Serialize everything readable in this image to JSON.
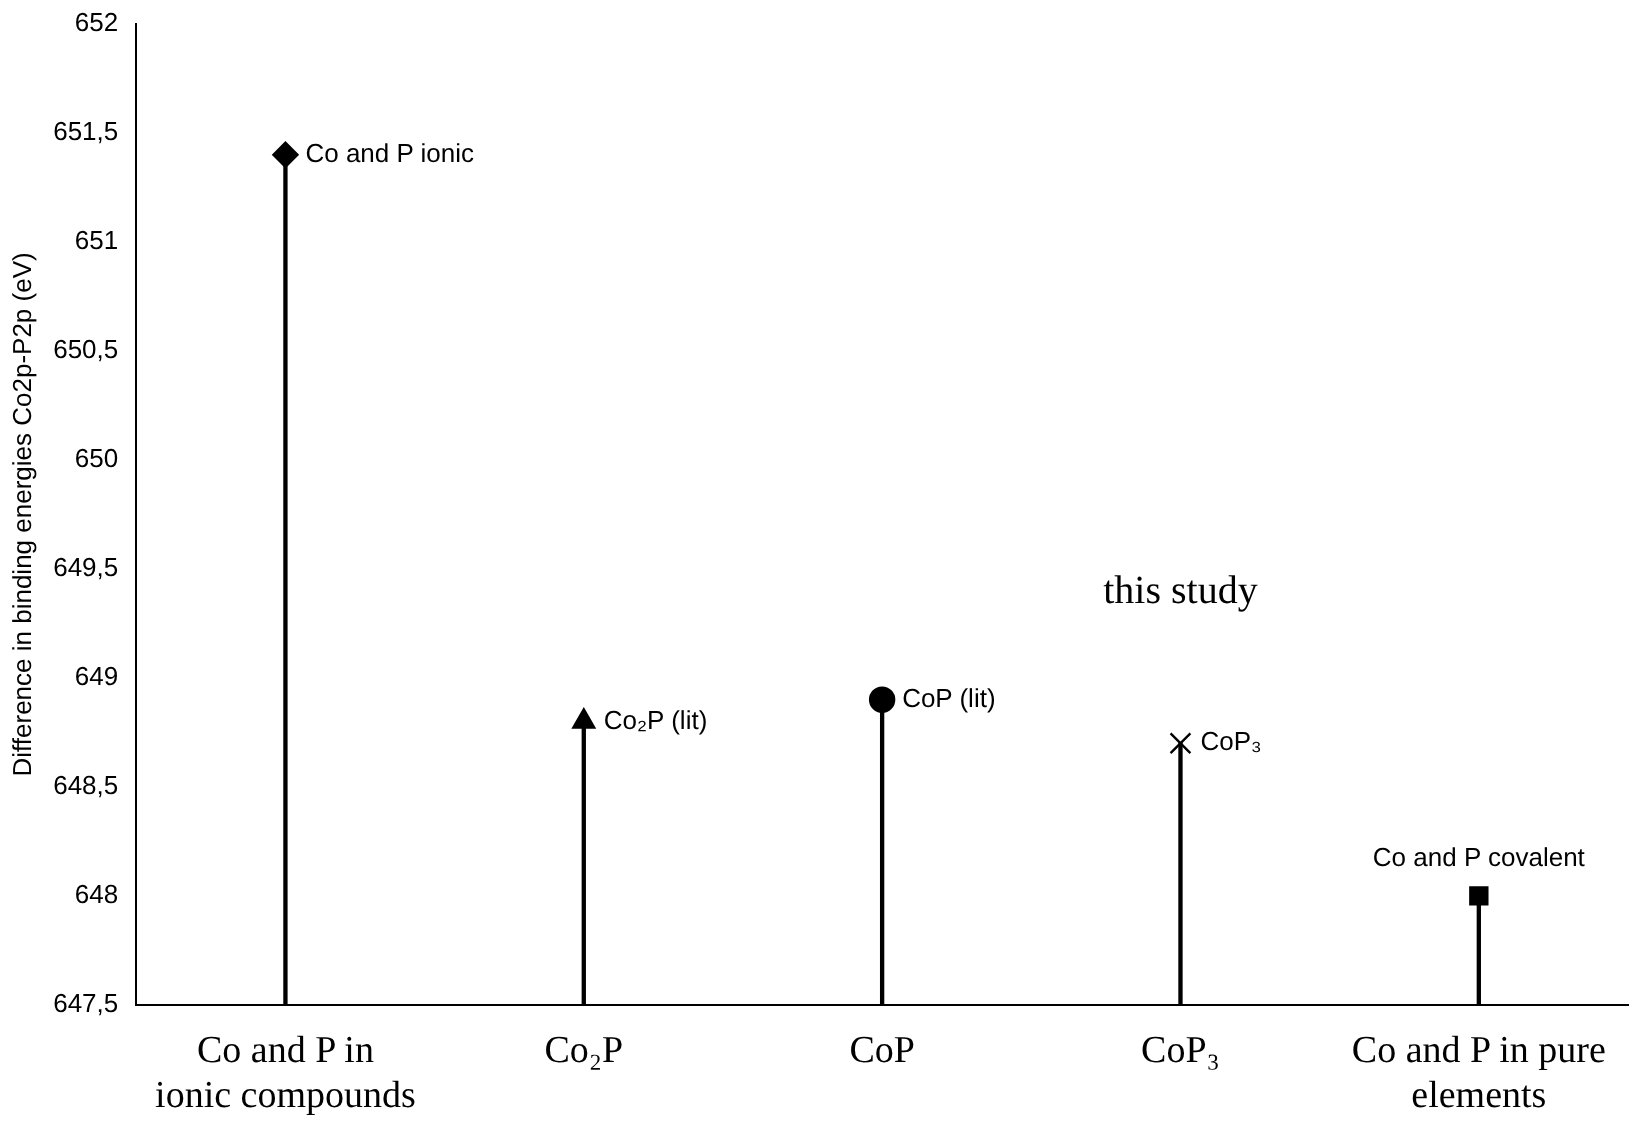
{
  "chart_data": {
    "type": "lollipop",
    "ylabel": "Difference in binding energies Co2p-P2p (eV)",
    "categories": [
      "Co and P in ionic compounds",
      "Co₂P",
      "CoP",
      "CoP₃",
      "Co and P in pure elements"
    ],
    "series": [
      {
        "color": "#000000",
        "marker": "diamond",
        "values": [
          651.4,
          null,
          null,
          null,
          null
        ]
      },
      {
        "color": "#000000",
        "marker": "triangle",
        "values": [
          null,
          648.8,
          null,
          null,
          null
        ]
      },
      {
        "color": "#000000",
        "marker": "circle",
        "values": [
          null,
          null,
          648.9,
          null,
          null
        ]
      },
      {
        "color": "#000000",
        "marker": "cross",
        "values": [
          null,
          null,
          null,
          648.7,
          null
        ]
      },
      {
        "color": "#000000",
        "marker": "square",
        "values": [
          null,
          null,
          null,
          null,
          648.0
        ]
      }
    ],
    "ylim": [
      647.5,
      652
    ],
    "yticks": [
      {
        "value": 647.5,
        "label": "647,5"
      },
      648,
      {
        "value": 648.5,
        "label": "648,5"
      },
      649,
      {
        "value": 649.5,
        "label": "649,5"
      },
      650,
      {
        "value": 650.5,
        "label": "650,5"
      },
      651,
      {
        "value": 651.5,
        "label": "651,5"
      },
      652
    ],
    "annotations": [
      {
        "text": "Co and P ionic",
        "x": "Co and P in ionic compounds",
        "y": 651.4
      },
      {
        "text": "Co₂P (lit)",
        "x": "Co₂P",
        "y": 648.8
      },
      {
        "text": "CoP (lit)",
        "x": "CoP",
        "y": 648.9
      },
      {
        "text": "CoP₃",
        "x": "CoP₃",
        "y": 648.7
      },
      {
        "text": "Co and P covalent",
        "x": "Co and P in pure elements",
        "y": 648.0
      },
      "this study"
    ],
    "grid": false,
    "legend": false
  }
}
